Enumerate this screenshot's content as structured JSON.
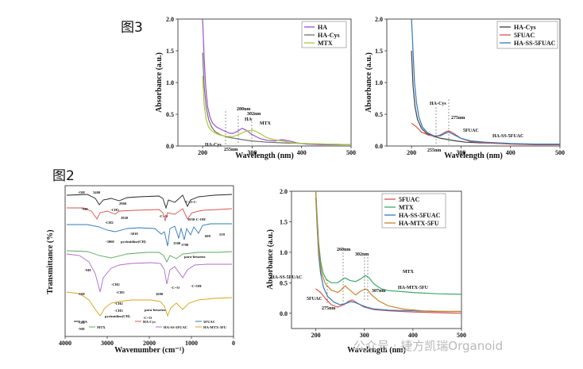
{
  "labels": {
    "fig3": "图3",
    "fig2": "图2",
    "watermark": "公众号 · 捷方凯瑞Organoid"
  },
  "chart_data": [
    {
      "id": "top-left",
      "type": "line",
      "xlabel": "Wavelength (nm)",
      "ylabel": "Absorbance (a.u.)",
      "xlim": [
        150,
        500
      ],
      "ylim": [
        0,
        2.0
      ],
      "xticks": [
        200,
        300,
        400,
        500
      ],
      "yticks": [
        0.0,
        0.5,
        1.0,
        1.5,
        2.0
      ],
      "legend_position": "top-right",
      "series": [
        {
          "name": "HA",
          "color": "#9b4fc8",
          "x": [
            200,
            203,
            206,
            210,
            215,
            220,
            228,
            240,
            255,
            262,
            270,
            280,
            290,
            300,
            315,
            330,
            345,
            360,
            375,
            390,
            410,
            440,
            470,
            500
          ],
          "y": [
            2.0,
            1.4,
            0.95,
            0.62,
            0.45,
            0.36,
            0.3,
            0.25,
            0.2,
            0.2,
            0.23,
            0.28,
            0.24,
            0.18,
            0.12,
            0.09,
            0.08,
            0.1,
            0.08,
            0.05,
            0.03,
            0.02,
            0.02,
            0.02
          ]
        },
        {
          "name": "HA-Cys",
          "color": "#707070",
          "x": [
            200,
            203,
            207,
            212,
            218,
            225,
            235,
            250,
            265,
            280,
            300,
            330,
            360,
            400,
            450,
            500
          ],
          "y": [
            1.47,
            0.95,
            0.62,
            0.42,
            0.3,
            0.23,
            0.18,
            0.14,
            0.12,
            0.1,
            0.08,
            0.06,
            0.05,
            0.04,
            0.03,
            0.02
          ]
        },
        {
          "name": "MTX",
          "color": "#a6c93c",
          "x": [
            200,
            203,
            207,
            212,
            218,
            226,
            236,
            250,
            262,
            275,
            290,
            302,
            315,
            330,
            345,
            360,
            380,
            400,
            450,
            500
          ],
          "y": [
            1.1,
            0.65,
            0.42,
            0.3,
            0.24,
            0.2,
            0.17,
            0.15,
            0.15,
            0.19,
            0.24,
            0.25,
            0.2,
            0.13,
            0.1,
            0.08,
            0.05,
            0.04,
            0.03,
            0.02
          ]
        }
      ],
      "annotations": [
        "280nm",
        "302nm",
        "HA",
        "MTX",
        "HA-Cys",
        "255nm"
      ]
    },
    {
      "id": "top-right",
      "type": "line",
      "xlabel": "Wavelength (nm)",
      "ylabel": "Absorbance (a.u.)",
      "xlim": [
        150,
        500
      ],
      "ylim": [
        0,
        2.0
      ],
      "xticks": [
        200,
        300,
        400,
        500
      ],
      "yticks": [
        0.0,
        0.5,
        1.0,
        1.5,
        2.0
      ],
      "legend_position": "top-right",
      "series": [
        {
          "name": "HA-Cys",
          "color": "#404040",
          "x": [
            200,
            203,
            207,
            212,
            220,
            230,
            245,
            260,
            275,
            290,
            310,
            340,
            380,
            420,
            460,
            500
          ],
          "y": [
            1.5,
            0.95,
            0.62,
            0.42,
            0.28,
            0.2,
            0.15,
            0.12,
            0.1,
            0.08,
            0.06,
            0.05,
            0.04,
            0.03,
            0.02,
            0.02
          ]
        },
        {
          "name": "5FUAC",
          "color": "#d9534f",
          "x": [
            200,
            210,
            220,
            235,
            250,
            260,
            268,
            275,
            285,
            300,
            320,
            350,
            400,
            450,
            500
          ],
          "y": [
            0.36,
            0.3,
            0.22,
            0.17,
            0.15,
            0.18,
            0.22,
            0.24,
            0.2,
            0.12,
            0.07,
            0.05,
            0.03,
            0.02,
            0.02
          ]
        },
        {
          "name": "HA-SS-5FUAC",
          "color": "#2f78b8",
          "x": [
            200,
            203,
            206,
            210,
            215,
            222,
            232,
            245,
            258,
            268,
            275,
            285,
            300,
            320,
            350,
            400,
            450,
            500
          ],
          "y": [
            2.0,
            1.5,
            1.0,
            0.68,
            0.45,
            0.3,
            0.21,
            0.16,
            0.16,
            0.2,
            0.22,
            0.18,
            0.12,
            0.08,
            0.06,
            0.04,
            0.03,
            0.03
          ]
        }
      ],
      "annotations": [
        "HA-Cys",
        "275nm",
        "5FUAC",
        "HA-SS-5FUAC",
        "255nm"
      ]
    },
    {
      "id": "bottom-left",
      "type": "line",
      "xlabel": "Wavenumber (cm⁻¹)",
      "ylabel": "Transmittance (%)",
      "xlim": [
        4000,
        0
      ],
      "xticks": [
        4000,
        3000,
        2000,
        1000,
        0
      ],
      "series": [
        {
          "name": "HA",
          "color": "#222222"
        },
        {
          "name": "HA-Cys",
          "color": "#d9534f"
        },
        {
          "name": "5FUAC",
          "color": "#2f78b8"
        },
        {
          "name": "MTX",
          "color": "#58a85a"
        },
        {
          "name": "HA-SS-5FUAC",
          "color": "#b06ac8"
        },
        {
          "name": "HA-MTX-5FU",
          "color": "#d4a418"
        }
      ],
      "legend_labels": [
        "HA",
        "HA-Cys",
        "5FUAC",
        "MTX",
        "HA-SS-5FUAC",
        "HA-MTX-5FU"
      ],
      "annotations": [
        "-OH",
        "3400",
        "-NH",
        "2960",
        "-CH3",
        "2920",
        "-C=O",
        "-C-O-C-",
        "1050-C-OH",
        "-CH2",
        "-3010",
        "-3060",
        "pyrimidine(CH)",
        "1500",
        "1700",
        "559",
        "600",
        "para-benzene",
        "-NH",
        "-CH2",
        "-CH3",
        "-OH",
        "1690",
        "-C=O",
        "-C-OH",
        "-CH2",
        "-CH3",
        "pyrimidine(CH)",
        "para-benzene",
        "-C=O",
        "-OH",
        "-NH"
      ]
    },
    {
      "id": "bottom-right",
      "type": "line",
      "xlabel": "Wavelength (nm)",
      "ylabel": "Absorbance (a.u.)",
      "xlim": [
        150,
        500
      ],
      "ylim": [
        -0.25,
        2.0
      ],
      "xticks": [
        200,
        300,
        400,
        500
      ],
      "yticks": [
        0.0,
        0.5,
        1.0,
        1.5,
        2.0
      ],
      "legend_position": "top-left",
      "series": [
        {
          "name": "5FUAC",
          "color": "#d9534f",
          "x": [
            200,
            210,
            220,
            232,
            245,
            258,
            268,
            275,
            285,
            300,
            320,
            350,
            400,
            450,
            500
          ],
          "y": [
            0.4,
            0.34,
            0.24,
            0.14,
            0.1,
            0.14,
            0.2,
            0.22,
            0.17,
            0.1,
            0.06,
            0.04,
            0.02,
            0.01,
            0.0
          ]
        },
        {
          "name": "MTX",
          "color": "#3aaa6a",
          "x": [
            200,
            203,
            206,
            210,
            215,
            222,
            232,
            245,
            252,
            260,
            270,
            282,
            292,
            302,
            310,
            320,
            335,
            350,
            370,
            400,
            450,
            500
          ],
          "y": [
            2.0,
            1.55,
            1.15,
            0.85,
            0.66,
            0.55,
            0.5,
            0.5,
            0.54,
            0.58,
            0.54,
            0.52,
            0.56,
            0.62,
            0.58,
            0.48,
            0.4,
            0.37,
            0.36,
            0.34,
            0.32,
            0.31
          ]
        },
        {
          "name": "HA-SS-5FUAC",
          "color": "#2f78b8",
          "x": [
            200,
            203,
            206,
            210,
            216,
            225,
            238,
            250,
            262,
            272,
            280,
            292,
            305,
            320,
            350,
            400,
            450,
            500
          ],
          "y": [
            1.9,
            1.4,
            0.95,
            0.65,
            0.42,
            0.27,
            0.18,
            0.14,
            0.16,
            0.19,
            0.18,
            0.14,
            0.1,
            0.07,
            0.05,
            0.04,
            0.03,
            0.03
          ]
        },
        {
          "name": "HA-MTX-5FU",
          "color": "#c9822a",
          "x": [
            200,
            203,
            207,
            212,
            220,
            232,
            245,
            252,
            260,
            270,
            282,
            292,
            302,
            307,
            315,
            330,
            350,
            380,
            420,
            460,
            500
          ],
          "y": [
            2.0,
            1.4,
            0.95,
            0.66,
            0.48,
            0.38,
            0.34,
            0.38,
            0.45,
            0.38,
            0.3,
            0.36,
            0.4,
            0.38,
            0.3,
            0.2,
            0.12,
            0.07,
            0.04,
            0.03,
            0.03
          ]
        }
      ],
      "annotations": [
        "260nm",
        "302nm",
        "307nm",
        "MTX",
        "HA-SS-5FUAC",
        "HA-MTX-5FU",
        "5FUAC",
        "275nm"
      ]
    }
  ]
}
